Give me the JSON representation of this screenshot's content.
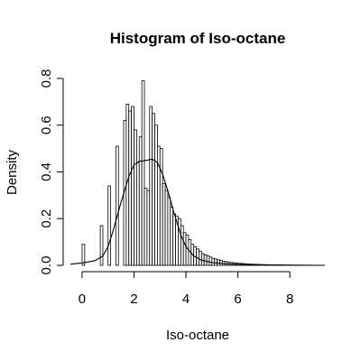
{
  "chart_data": {
    "type": "bar",
    "title": "Histogram of Iso-octane",
    "xlabel": "Iso-octane",
    "ylabel": "Density",
    "xlim": [
      -0.45,
      9.35
    ],
    "ylim": [
      0,
      0.85
    ],
    "x_ticks": [
      0,
      2,
      4,
      6,
      8
    ],
    "y_ticks": [
      0.0,
      0.2,
      0.4,
      0.6,
      0.8
    ],
    "x_tick_labels": [
      "0",
      "2",
      "4",
      "6",
      "8"
    ],
    "y_tick_labels": [
      "0.0",
      "0.2",
      "0.4",
      "0.6",
      "0.8"
    ],
    "bin_width": 0.1,
    "bins_start": 0.0,
    "values": [
      0.09,
      0,
      0,
      0,
      0,
      0,
      0,
      0.17,
      0,
      0,
      0.34,
      0,
      0,
      0.51,
      0,
      0,
      0.62,
      0.69,
      0.66,
      0.68,
      0.58,
      0.44,
      0.55,
      0.79,
      0.33,
      0.32,
      0.68,
      0.65,
      0.6,
      0.51,
      0.5,
      0.35,
      0.32,
      0.29,
      0.25,
      0.22,
      0.21,
      0.2,
      0.17,
      0.14,
      0.13,
      0.11,
      0.09,
      0.08,
      0.07,
      0.06,
      0.05,
      0.045,
      0.04,
      0.035,
      0.03,
      0.027,
      0.024,
      0.021,
      0.018,
      0.016,
      0.014,
      0.012,
      0.011,
      0.01,
      0.009,
      0.008,
      0.007,
      0.006,
      0.0055,
      0.005,
      0.0045,
      0.004,
      0.0035,
      0.003,
      0.0028,
      0.0025,
      0.0022,
      0.002,
      0.0018,
      0.0016,
      0.0014,
      0.0012,
      0.001,
      0.0009,
      0.0008,
      0.0007,
      0.0006,
      0.0005,
      0.0004,
      0.0003,
      0.0003,
      0.0002,
      0.0002,
      0.0001,
      0.0001
    ],
    "density_curve": {
      "x": [
        -0.45,
        0,
        0.5,
        0.8,
        1.0,
        1.2,
        1.5,
        1.8,
        2.0,
        2.2,
        2.5,
        2.7,
        2.9,
        3.1,
        3.3,
        3.5,
        3.8,
        4.0,
        4.3,
        4.6,
        5.0,
        5.5,
        6.0,
        7.0,
        8.0,
        9.35
      ],
      "y": [
        0.005,
        0.01,
        0.02,
        0.04,
        0.08,
        0.15,
        0.27,
        0.38,
        0.43,
        0.445,
        0.45,
        0.455,
        0.44,
        0.39,
        0.32,
        0.24,
        0.13,
        0.08,
        0.04,
        0.022,
        0.012,
        0.007,
        0.004,
        0.002,
        0.001,
        0.0
      ]
    }
  }
}
